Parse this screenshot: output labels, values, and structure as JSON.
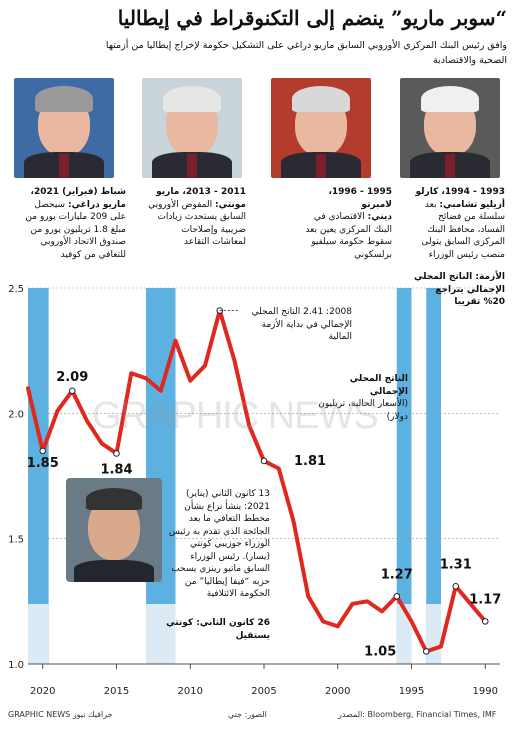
{
  "title": "“سوبر ماريو” ينضم إلى التكنوقراط في إيطاليا",
  "subtitle": "وافق رئيس البنك المركزي الأوروبي السابق ماريو دراغي على التشكيل حكومة لإخراج إيطاليا من أزمتها الصحية والاقتصادية",
  "panels": [
    {
      "name": "draghi",
      "hair": "#9a9a9a",
      "bg": "#3e6aa6"
    },
    {
      "name": "monti",
      "hair": "#e6e6e6",
      "bg": "#c9d3da"
    },
    {
      "name": "dini",
      "hair": "#d8d8d8",
      "bg": "#b43c2c"
    },
    {
      "name": "ciampi",
      "hair": "#f0f0f0",
      "bg": "#5a5a5a"
    }
  ],
  "captions": {
    "draghi": {
      "head": "شباط (فبراير) 2021،",
      "name": "ماريو دراغي:",
      "text": "سيحصل على 209 مليارات يورو من مبلغ 1.8 تريليون يورو من صندوق الاتحاد الأوروبي للتعافي من كوفيد"
    },
    "monti": {
      "head": "2011 - 2013، ماريو",
      "name": "مونتي:",
      "text": "المفوض الأوروبي السابق يستحدث زيادات ضريبية وإصلاحات لمعاشات التقاعد"
    },
    "dini": {
      "head": "1995 - 1996، لامبرتو",
      "name": "ديني:",
      "text": "الاقتصادي في البنك المركزي يعين بعد سقوط حكومة سيلفيو برلسكوني"
    },
    "ciampi": {
      "head": "1993 - 1994، كارلو",
      "name": "أزيليو تشامبي:",
      "text": "بعد سلسلة من فضائح الفساد، محافظ البنك المركزي السابق يتولى منصب رئيس الوزراء",
      "gdp_head": "الأزمة: الناتج المحلي الإجمالي يتراجع 20% تقريبا"
    }
  },
  "annotations": {
    "crisis_2008": "2008: 2.41 الناتج المحلي الإجمالي في بداية الأزمة المالية",
    "gdp_label": "الناتج المحلي الإجمالي",
    "gdp_units": "(الأسعار الحالية، تريليون دولار)",
    "conte_2021": "13 كانون الثاني (يناير) 2021: ينشأ نزاع بشأن مخطط التعافي ما بعد الجائحة الذي تقدم به رئيس الوزراء جوزيبي كونتي (يسار). رئيس الوزراء السابق ماتيو رينزي يسحب حزبه “فيفا إيطاليا” من الحكومة الائتلافية",
    "conte_resign": "26 كانون الثاني: كونتي يستقيل"
  },
  "footer": {
    "source": "المصدر: Bloomberg, Financial Times, IMF",
    "photos": "الصور: جتي",
    "brand": "GRAPHIC NEWS جرافيك نيوز"
  },
  "watermark": "GRAPHIC NEWS",
  "chart_data": {
    "type": "line",
    "title": "الناتج المحلي الإجمالي",
    "ylabel": "(الأسعار الحالية، تريليون دولار)",
    "x_reversed": true,
    "xlim": [
      1989,
      2021
    ],
    "ylim": [
      1.0,
      2.5
    ],
    "yticks": [
      1.0,
      1.5,
      2.0,
      2.5
    ],
    "xticks": [
      1990,
      1995,
      2000,
      2005,
      2010,
      2015,
      2020
    ],
    "series": [
      {
        "name": "الناتج المحلي الإجمالي",
        "x": [
          1990,
          1991,
          1992,
          1993,
          1994,
          1995,
          1996,
          1997,
          1998,
          1999,
          2000,
          2001,
          2002,
          2003,
          2004,
          2005,
          2006,
          2007,
          2008,
          2009,
          2010,
          2011,
          2012,
          2013,
          2014,
          2015,
          2016,
          2017,
          2018,
          2019,
          2020,
          2021
        ],
        "values": [
          1.17,
          1.24,
          1.31,
          1.07,
          1.05,
          1.17,
          1.27,
          1.21,
          1.25,
          1.24,
          1.15,
          1.17,
          1.27,
          1.57,
          1.78,
          1.81,
          1.95,
          2.21,
          2.41,
          2.19,
          2.13,
          2.29,
          2.09,
          2.14,
          2.16,
          1.84,
          1.88,
          1.97,
          2.09,
          2.01,
          1.85,
          2.1
        ]
      }
    ],
    "labels": [
      {
        "x": 2020,
        "y": 1.85,
        "text": "1.85"
      },
      {
        "x": 2018,
        "y": 2.09,
        "text": "2.09"
      },
      {
        "x": 2015,
        "y": 1.84,
        "text": "1.84"
      },
      {
        "x": 2005,
        "y": 1.81,
        "text": "1.81"
      },
      {
        "x": 1996,
        "y": 1.27,
        "text": "1.27"
      },
      {
        "x": 1994,
        "y": 1.05,
        "text": "1.05"
      },
      {
        "x": 1992,
        "y": 1.31,
        "text": "1.31"
      },
      {
        "x": 1990,
        "y": 1.17,
        "text": "1.17"
      }
    ],
    "shaded_periods": [
      {
        "from": 2021,
        "to": 2019.6,
        "color": "#3fa3db"
      },
      {
        "from": 2013,
        "to": 2011,
        "color": "#3fa3db"
      },
      {
        "from": 1996,
        "to": 1995,
        "color": "#3fa3db"
      },
      {
        "from": 1994,
        "to": 1993,
        "color": "#3fa3db"
      }
    ],
    "grid": false
  }
}
